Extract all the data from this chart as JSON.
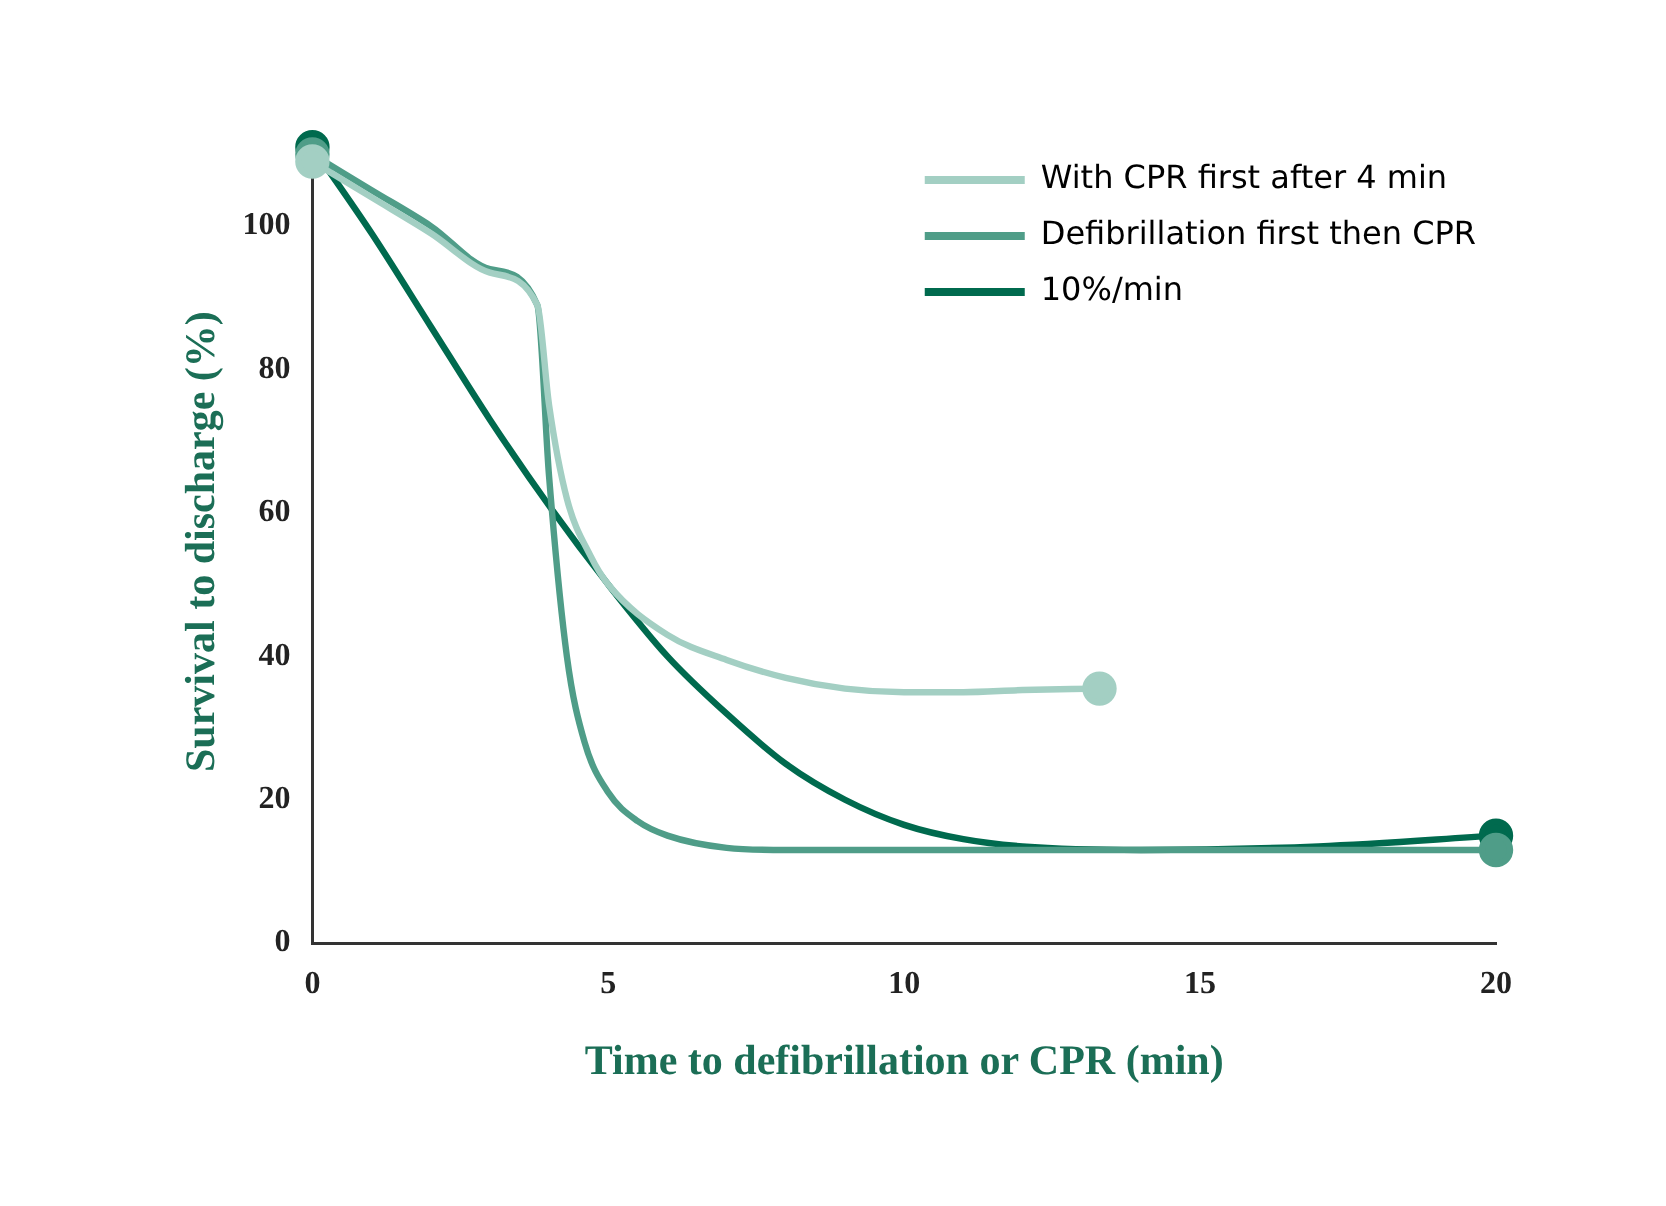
{
  "chart_data": {
    "type": "line",
    "xlabel": "Time to defibrillation or CPR (min)",
    "ylabel": "Survival to discharge (%)",
    "xlim": [
      0,
      20
    ],
    "xticks": [
      0,
      5,
      10,
      15,
      20
    ],
    "ylim": [
      0,
      112
    ],
    "yticks": [
      0,
      20,
      40,
      60,
      80,
      100
    ],
    "grid": false,
    "legend": "top right",
    "line_style": "solid",
    "series": [
      {
        "name": "With CPR first after 4 min",
        "color": "#a3cfc3",
        "x": [
          0,
          1,
          2,
          3,
          3.8,
          4,
          4.3,
          4.7,
          5,
          6,
          7,
          8,
          9,
          10,
          11,
          12,
          13.3
        ],
        "values": [
          109,
          104,
          99,
          93.5,
          89,
          75,
          62,
          54,
          50,
          43,
          39.5,
          37,
          35.5,
          35,
          35,
          35.3,
          35.5
        ]
      },
      {
        "name": "Defibrillation first then CPR",
        "color": "#4f9d88",
        "x": [
          0,
          1,
          2,
          3,
          3.8,
          4,
          4.3,
          4.6,
          5,
          5.5,
          6,
          7,
          8,
          10,
          15,
          20
        ],
        "values": [
          110,
          105,
          100,
          94,
          89,
          65,
          40,
          28,
          21,
          17,
          15,
          13.3,
          13,
          13,
          13,
          13
        ]
      },
      {
        "name": "10%/min",
        "color": "#006a4e",
        "x": [
          0,
          1,
          2,
          3,
          4,
          5,
          6,
          7,
          8,
          9,
          10,
          11,
          12,
          14,
          17,
          20
        ],
        "values": [
          111,
          99,
          86,
          73,
          61,
          50,
          40,
          32,
          25,
          20,
          16.5,
          14.5,
          13.5,
          13,
          13.5,
          15
        ]
      }
    ]
  }
}
